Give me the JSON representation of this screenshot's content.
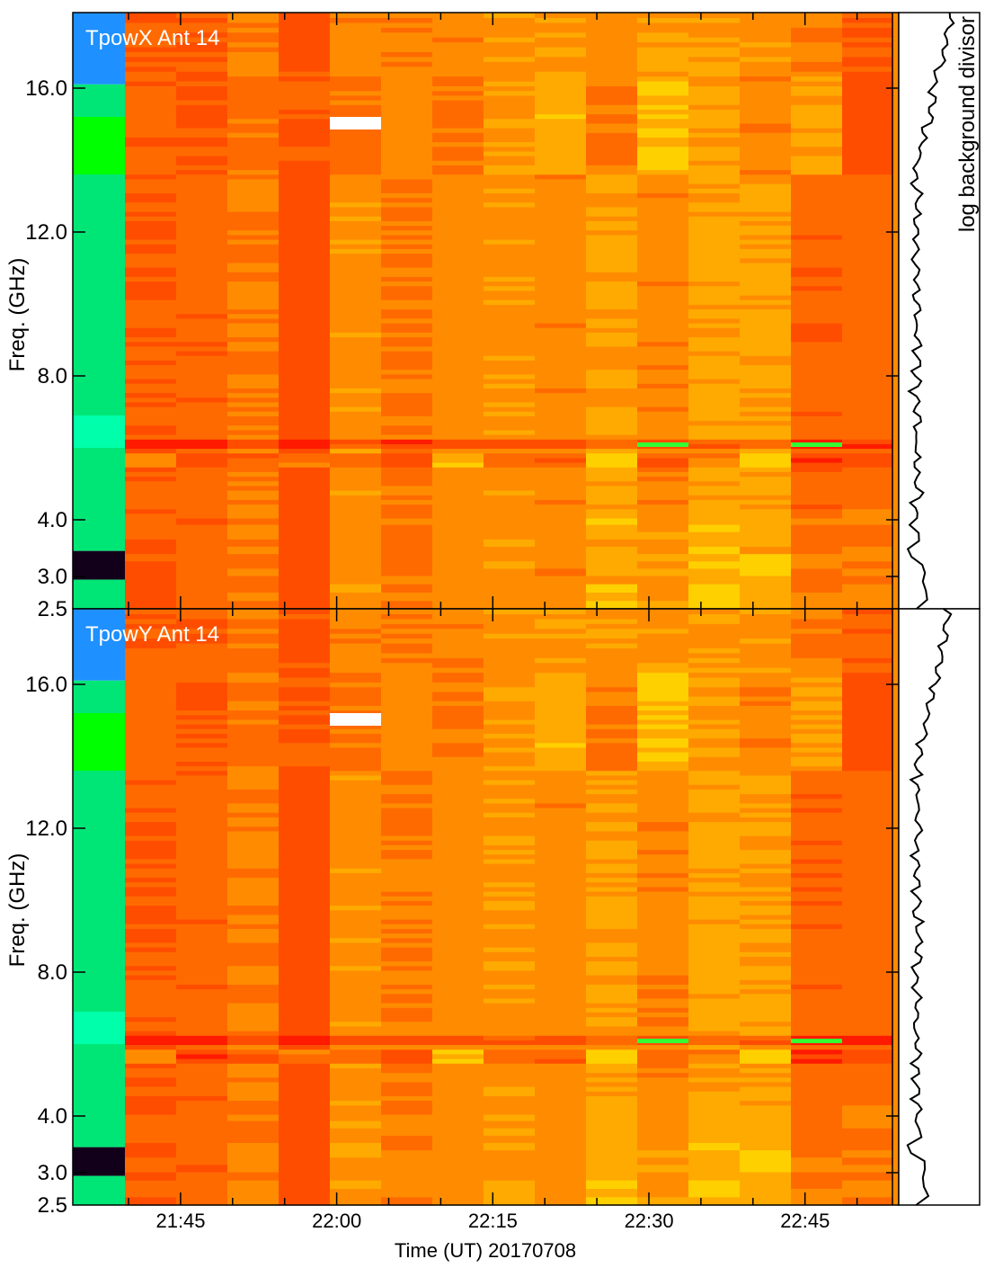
{
  "chart_data": [
    {
      "type": "heatmap",
      "title": "TpowX Ant 14",
      "ylabel": "Freq. (GHz)",
      "xlabel": "",
      "ylim": [
        2.5,
        18.0
      ],
      "ytick_values": [
        3.0,
        4.0,
        8.0,
        12.0,
        16.0
      ],
      "ytick_labels": [
        "3.0",
        "4.0",
        "8.0",
        "12.0",
        "16.0"
      ],
      "ybottom_label": "2.5",
      "side_panel_label": "log background divisor"
    },
    {
      "type": "heatmap",
      "title": "TpowY Ant 14",
      "ylabel": "Freq. (GHz)",
      "xlabel": "Time (UT) 20170708",
      "ylim": [
        2.5,
        18.0
      ],
      "ytick_values": [
        3.0,
        4.0,
        8.0,
        12.0,
        16.0
      ],
      "ytick_labels": [
        "3.0",
        "4.0",
        "8.0",
        "12.0",
        "16.0"
      ],
      "ybottom_label": "2.5",
      "xtick_labels": [
        "21:45",
        "22:00",
        "22:15",
        "22:30",
        "22:45"
      ]
    }
  ],
  "colors": {
    "reference_column": [
      "#1e90ff",
      "#00e676",
      "#00ff00",
      "#00ffaa",
      "#12001a"
    ],
    "heat_palette": [
      "#ff1a00",
      "#ff4d00",
      "#ff6a00",
      "#ff8c00",
      "#ffaa00",
      "#ffd000",
      "#ffff00"
    ],
    "flag": "#ffffff",
    "axes": "#000000"
  }
}
